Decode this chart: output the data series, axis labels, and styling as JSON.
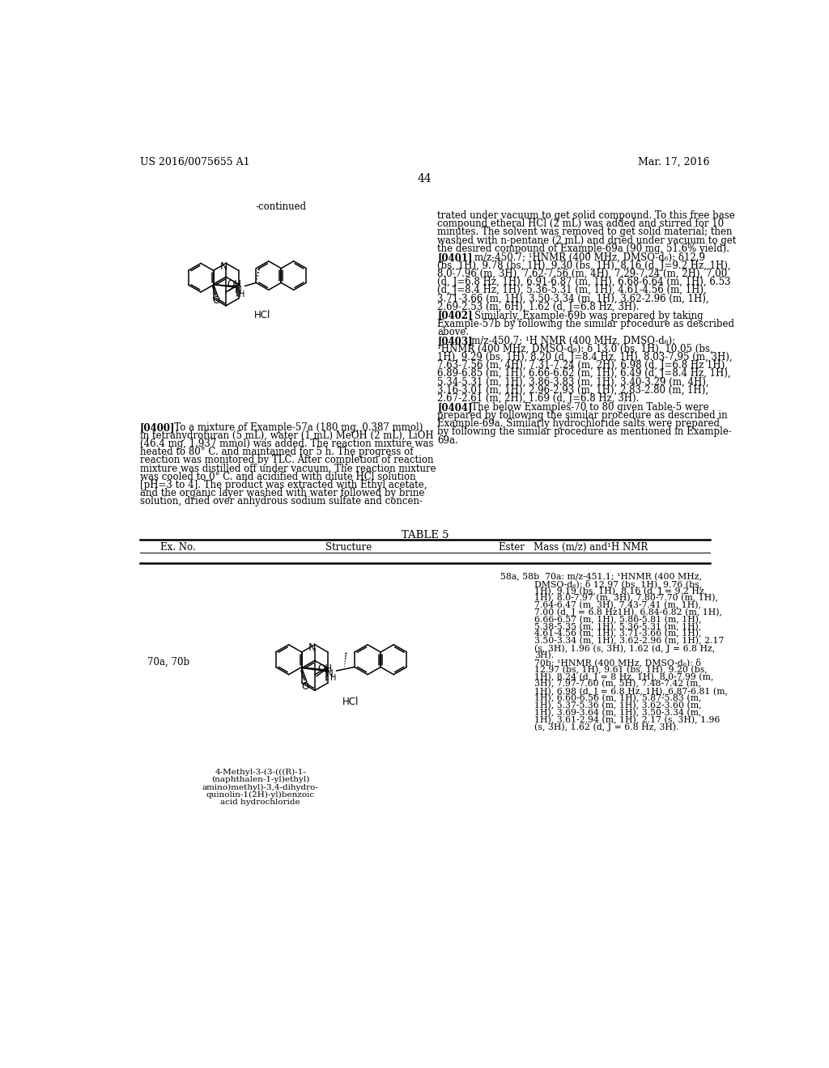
{
  "background_color": "#ffffff",
  "header_left": "US 2016/0075655 A1",
  "header_right": "Mar. 17, 2016",
  "page_number": "44",
  "continued_label": "-continued",
  "right_col_top": [
    "trated under vacuum to get solid compound. To this free base",
    "compound etheral HCl (2 mL) was added and stirred for 10",
    "minutes. The solvent was removed to get solid material; then",
    "washed with n-pentane (2 mL) and dried under vacuum to get",
    "the desired compound of Example-69a (90 mg, 51.6% yield)."
  ],
  "p401_bold": "[0401]",
  "p401_text": "   m/z-450.7; ¹HNMR (400 MHz, DMSO-d₆): δ12.9 (bs, 1H), 9.78 (bs, 1H), 9.30 (bs, 1H), 8.16 (d, J=9.2 Hz, 1H), 8.0-7.96 (m, 3H), 7.62-7.56 (m, 4H), 7.29-7.24 (m, 2H), 7.00 (d, J=6.8 Hz, 1H), 6.91-6.87 (m, 1H), 6.68-6.64 (m, 1H), 6.53 (d, J=8.4 Hz, 1H), 5.36-5.31 (m, 1H), 4.61-4.56 (m, 1H), 3.71-3.66 (m, 1H), 3.50-3.34 (m, 1H), 3.62-2.96 (m, 1H), 2.69-2.53 (m, 6H), 1.62 (d, J=6.8 Hz, 3H).",
  "p402_bold": "[0402]",
  "p402_text": "   Similarly, Example-69b was prepared by taking Example-57b by following the similar procedure as described above.",
  "p403_bold": "[0403]",
  "p403_text": "   m/z-450.7; ¹H NMR (400 MHz, DMSO-d₆): ¹HNMR (400 MHz, DMSO-d₆): δ 13.0 (bs, 1H), 10.05 (bs, 1H), 9.29 (bs, 1H), 8.20 (d, J=8.4 Hz, 1H), 8.03-7.95 (m, 3H), 7.63-7.56 (m, 4H), 7.31-7.24 (m, 2H), 6.98 (d, J=6.8 Hz 1H), 6.89-6.85 (m, 1H), 6.66-6.62 (m, 1H), 6.49 (d, J=8.4 Hz, 1H), 5.34-5.31 (m, 1H), 3.86-3.83 (m, 1H), 3.40-3.29 (m, 4H), 3.16-3.01 (m, 1H), 2.96-2.93 (m, 1H), 2.83-2.80 (m, 1H), 2.67-2.61 (m, 2H), 1.69 (d, J=6.8 Hz, 3H).",
  "p404_bold": "[0404]",
  "p404_text": "   The below Examples-70 to 80 given Table-5 were prepared by following the similar procedure as described in Example-69a. Similarly hydrochloride salts were prepared by following the similar procedure as mentioned in Example-69a.",
  "left_col_p400": [
    "[0400]   To a mixture of Example-57a (180 mg, 0.387 mmol)",
    "in tetrahydrofuran (5 mL), water (1 mL) MeOH (2 mL), LiOH",
    "(46.4 mg, 1.937 mmol) was added. The reaction mixture was",
    "heated to 80° C. and maintained for 5 h. The progress of",
    "reaction was monitored by TLC. After completion of reaction",
    "mixture was distilled off under vacuum. The reaction mixture",
    "was cooled to 0° C. and acidified with dilute HCl solution",
    "[pH=3 to 4]. The product was extracted with Ethyl acetate,",
    "and the organic layer washed with water followed by brine",
    "solution, dried over anhydrous sodium sulfate and concen-"
  ],
  "table5_title": "TABLE 5",
  "table_col1": "Ex. No.",
  "table_col2": "Structure",
  "table_col3": "Ester   Mass (m/z) and¹H NMR",
  "row_exno": "70a, 70b",
  "nmr_line1": "58a, 58b  70a: m/z-451.1; ¹HNMR (400 MHz,",
  "nmr_indent_lines": [
    "DMSO-d₆): δ 12.97 (bs, 1H), 9.76 (bs,",
    "1H), 9.19 (bs, 1H), 8.16 (d, J = 9.2 Hz,",
    "1H), 8.0-7.97 (m, 3H), 7.80-7.70 (m, 1H),",
    "7.64-6.47 (m, 3H), 7.43-7.41 (m, 1H),",
    "7.00 (d, J = 6.8 Hz1H), 6.84-6.82 (m, 1H),",
    "6.66-6.57 (m, 1H), 5.86-5.81 (m, 1H),",
    "5.38-5.35 (m, 1H), 5.36-5.31 (m, 1H),",
    "4.61-4.56 (m, 1H), 3.71-3.66 (m, 1H),",
    "3.50-3.34 (m, 1H), 3.62-2.96 (m, 1H), 2.17",
    "(s, 3H), 1.96 (s, 3H), 1.62 (d, J = 6.8 Hz,",
    "3H).",
    "70b; ¹HNMR (400 MHz, DMSO-d₆): δ",
    "12.97 (bs, 1H), 9.61 (bs, 1H), 9.20 (bs,",
    "1H), 8.24 (d, J = 8 Hz, 1H), 8.0-7.99 (m,",
    "3H), 7.97-7.60 (m, 5H), 7.48-7.42 (m,",
    "1H), 6.98 (d, J = 6.8 Hz, 1H), 6.87-6.81 (m,",
    "1H), 6.60-6.56 (m, 1H), 5.87-5.83 (m,",
    "1H), 5.37-5.36 (m, 1H), 3.62-3.60 (m,",
    "1H), 3.69-3.64 (m, 1H), 3.50-3.34 (m,",
    "1H), 3.61-2.94 (m, 1H), 2.17 (s, 3H), 1.96",
    "(s, 3H), 1.62 (d, J = 6.8 Hz, 3H)."
  ],
  "compound_name_lines": [
    "4-Methyl-3-(3-(((R)-1-",
    "(naphthalen-1-yl)ethyl)",
    "amino)methyl)-3,4-dihydro-",
    "quinolin-1(2H)-yl)benzoic",
    "acid hydrochloride"
  ]
}
